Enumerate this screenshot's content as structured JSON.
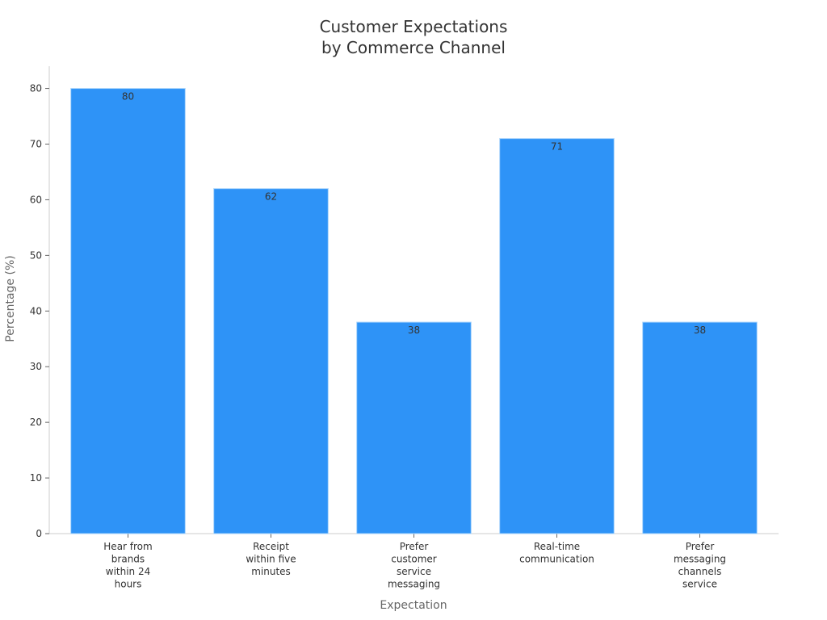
{
  "chart_data": {
    "type": "bar",
    "title_lines": [
      "Customer Expectations",
      "by Commerce Channel"
    ],
    "xlabel": "Expectation",
    "ylabel": "Percentage (%)",
    "categories": [
      [
        "Hear from",
        "brands",
        "within 24",
        "hours"
      ],
      [
        "Receipt",
        "within five",
        "minutes"
      ],
      [
        "Prefer",
        "customer",
        "service",
        "messaging"
      ],
      [
        "Real-time",
        "communication"
      ],
      [
        "Prefer",
        "messaging",
        "channels",
        "service"
      ]
    ],
    "values": [
      80,
      62,
      38,
      71,
      38
    ],
    "value_labels": [
      "80",
      "62",
      "38",
      "71",
      "38"
    ],
    "ylim": [
      0,
      84
    ],
    "yticks": [
      0,
      10,
      20,
      30,
      40,
      50,
      60,
      70,
      80
    ],
    "grid": false,
    "legend": "none",
    "bar_color": "#2e93f7",
    "bar_edge_color": "#a9d4fb",
    "axis_color": "#cccccc"
  }
}
